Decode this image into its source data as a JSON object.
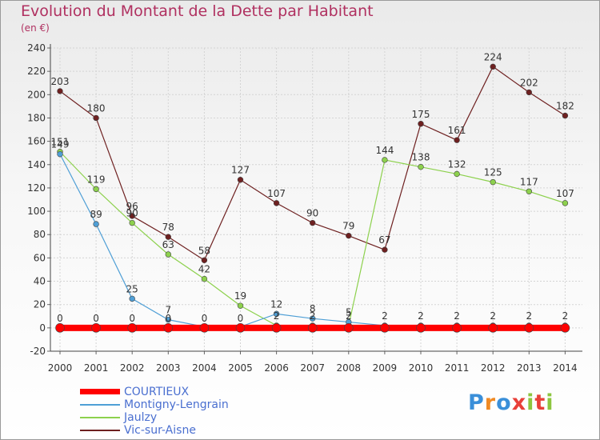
{
  "title": "Evolution du Montant de la Dette par Habitant",
  "subtitle": "(en €)",
  "logo": {
    "letters": [
      "P",
      "r",
      "o",
      "x",
      "i",
      "t",
      "i"
    ],
    "colors": [
      "#3a8fd9",
      "#f08a24",
      "#3a8fd9",
      "#e8403a",
      "#8dc63f",
      "#e8403a",
      "#8dc63f"
    ]
  },
  "chart_data": {
    "type": "line",
    "x": [
      "2000",
      "2001",
      "2002",
      "2003",
      "2004",
      "2005",
      "2006",
      "2007",
      "2008",
      "2009",
      "2010",
      "2011",
      "2012",
      "2013",
      "2014"
    ],
    "ylim": [
      -20,
      240
    ],
    "yticks": [
      -20,
      0,
      20,
      40,
      60,
      80,
      100,
      120,
      140,
      160,
      180,
      200,
      220,
      240
    ],
    "grid": true,
    "legend_position": "bottom-left",
    "series": [
      {
        "name": "COURTIEUX",
        "color": "#ff0000",
        "values": [
          0,
          0,
          0,
          0,
          0,
          0,
          0,
          0,
          0,
          0,
          0,
          0,
          0,
          0,
          0
        ],
        "labels": [
          "0",
          "0",
          "0",
          "0",
          "0",
          "0",
          "",
          "",
          "",
          "",
          "",
          "",
          "",
          "",
          ""
        ]
      },
      {
        "name": "Montigny-Lengrain",
        "color": "#4f9fd6",
        "values": [
          149,
          89,
          25,
          7,
          1,
          1,
          12,
          8,
          5,
          2,
          2,
          2,
          2,
          2,
          2
        ],
        "labels": [
          "149",
          "89",
          "25",
          "7",
          "",
          "",
          "12",
          "8",
          "5",
          "2",
          "2",
          "2",
          "2",
          "2",
          "2"
        ]
      },
      {
        "name": "Jaulzy",
        "color": "#8dd14d",
        "values": [
          151,
          119,
          90,
          63,
          42,
          19,
          2,
          2,
          2,
          144,
          138,
          132,
          125,
          117,
          107
        ],
        "labels": [
          "151",
          "119",
          "90",
          "63",
          "42",
          "19",
          "2",
          "2",
          "2",
          "144",
          "138",
          "132",
          "125",
          "117",
          "107"
        ]
      },
      {
        "name": "Vic-sur-Aisne",
        "color": "#6e2020",
        "values": [
          203,
          180,
          96,
          78,
          58,
          127,
          107,
          90,
          79,
          67,
          175,
          161,
          224,
          202,
          182
        ],
        "labels": [
          "203",
          "180",
          "96",
          "78",
          "58",
          "127",
          "107",
          "90",
          "79",
          "67",
          "175",
          "161",
          "224",
          "202",
          "182"
        ]
      }
    ]
  }
}
